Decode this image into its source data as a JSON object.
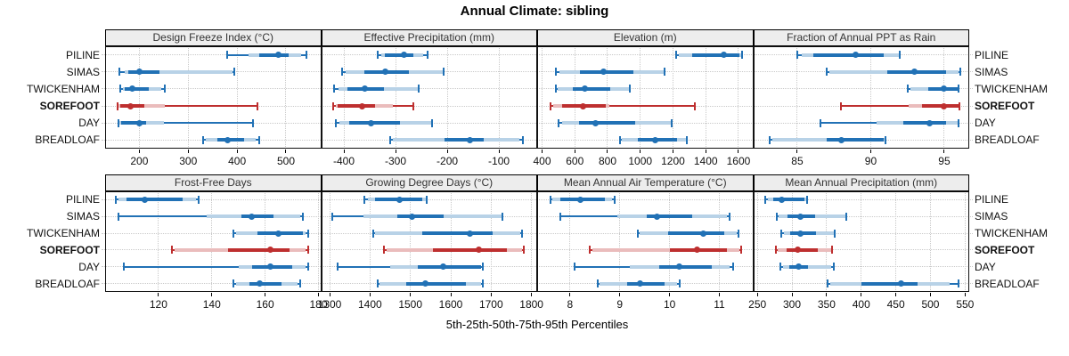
{
  "title": "Annual Climate: sibling",
  "x_axis_caption": "5th-25th-50th-75th-95th Percentiles",
  "sites": [
    "PILINE",
    "SIMAS",
    "TWICKENHAM",
    "SOREFOOT",
    "DAY",
    "BREADLOAF"
  ],
  "highlight_site": "SOREFOOT",
  "colors": {
    "blue": "#2171b5",
    "blue_band": "#b8d2e7",
    "red": "#be2f2f",
    "red_band": "#eabcbc",
    "grid": "#c9c9c9",
    "header_bg": "#ededed",
    "panel_border": "#111111",
    "text": "#111111"
  },
  "chart_data": {
    "type": "scatter",
    "subtype": "trellis-percentile-interval-plot",
    "glyph_note": "per site: thin whisker p5-p95 with end caps, light band p10-p90, dark band p25-p75, dot at median p50",
    "legend_position": "none",
    "grid": "dotted",
    "site_order": [
      "PILINE",
      "SIMAS",
      "TWICKENHAM",
      "SOREFOOT",
      "DAY",
      "BREADLOAF"
    ],
    "panels": [
      {
        "title": "Design Freeze Index (°C)",
        "row": 0,
        "col": 0,
        "xlim": [
          130,
          572
        ],
        "ticks": [
          200,
          300,
          400,
          500
        ],
        "percentiles": [
          [
            380,
            424,
            446,
            485,
            505,
            531,
            542
          ],
          [
            159,
            170,
            178,
            201,
            242,
            390,
            394
          ],
          [
            161,
            166,
            171,
            186,
            219,
            245,
            252
          ],
          [
            155,
            158,
            161,
            182,
            211,
            253,
            441
          ],
          [
            157,
            160,
            163,
            200,
            213,
            251,
            432
          ],
          [
            330,
            336,
            360,
            380,
            415,
            438,
            446
          ]
        ]
      },
      {
        "title": "Effective Precipitation (mm)",
        "row": 0,
        "col": 1,
        "xlim": [
          -444,
          -26
        ],
        "ticks": [
          -400,
          -300,
          -200,
          -100
        ],
        "percentiles": [
          [
            -335,
            -327,
            -320,
            -284,
            -266,
            -246,
            -238
          ],
          [
            -404,
            -397,
            -360,
            -320,
            -274,
            -209,
            -207
          ],
          [
            -419,
            -411,
            -393,
            -360,
            -323,
            -257,
            -255
          ],
          [
            -421,
            -416,
            -412,
            -364,
            -340,
            -306,
            -266
          ],
          [
            -415,
            -409,
            -389,
            -347,
            -291,
            -230,
            -229
          ],
          [
            -310,
            -305,
            -206,
            -157,
            -129,
            -60,
            -54
          ]
        ]
      },
      {
        "title": "Elevation (m)",
        "row": 0,
        "col": 2,
        "xlim": [
          370,
          1690
        ],
        "ticks": [
          400,
          600,
          800,
          1000,
          1200,
          1400,
          1600
        ],
        "percentiles": [
          [
            1220,
            1238,
            1315,
            1510,
            1605,
            1615,
            1624
          ],
          [
            487,
            505,
            633,
            773,
            960,
            1145,
            1151
          ],
          [
            482,
            496,
            587,
            660,
            815,
            929,
            936
          ],
          [
            451,
            470,
            524,
            651,
            787,
            810,
            1333
          ],
          [
            500,
            524,
            624,
            729,
            969,
            1184,
            1191
          ],
          [
            875,
            887,
            987,
            1093,
            1224,
            1282,
            1287
          ]
        ]
      },
      {
        "title": "Fraction of Annual PPT as Rain",
        "row": 0,
        "col": 3,
        "xlim": [
          82,
          96.7
        ],
        "ticks": [
          85,
          90,
          95
        ],
        "percentiles": [
          [
            85,
            85.3,
            86.1,
            89,
            90.9,
            91.9,
            92
          ],
          [
            87,
            87.2,
            91.1,
            93,
            95.1,
            96,
            96.1
          ],
          [
            92.5,
            92.7,
            93.9,
            95,
            95.9,
            95.95,
            96
          ],
          [
            88,
            92.6,
            93.5,
            95,
            96,
            96.02,
            96.05
          ],
          [
            86.6,
            90.4,
            92.2,
            94,
            95.1,
            95.9,
            96
          ],
          [
            83.1,
            83.3,
            87,
            88,
            90.9,
            90.95,
            91
          ]
        ]
      },
      {
        "title": "Frost-Free Days",
        "row": 1,
        "col": 0,
        "xlim": [
          100,
          181
        ],
        "ticks": [
          120,
          140,
          160,
          180
        ],
        "percentiles": [
          [
            104,
            105,
            108,
            115,
            129,
            134,
            135
          ],
          [
            105,
            138,
            151,
            155,
            163,
            173,
            174
          ],
          [
            148,
            149,
            157,
            165,
            174,
            175,
            176
          ],
          [
            125,
            126,
            146,
            162,
            169,
            175,
            176
          ],
          [
            107,
            150,
            155,
            162,
            170,
            175,
            176
          ],
          [
            148,
            149,
            154,
            158,
            166,
            172,
            173
          ]
        ]
      },
      {
        "title": "Growing Degree Days (°C)",
        "row": 1,
        "col": 1,
        "xlim": [
          1279,
          1814
        ],
        "ticks": [
          1300,
          1400,
          1500,
          1600,
          1700,
          1800
        ],
        "percentiles": [
          [
            1386,
            1395,
            1412,
            1473,
            1530,
            1538,
            1541
          ],
          [
            1307,
            1383,
            1467,
            1503,
            1582,
            1725,
            1729
          ],
          [
            1407,
            1412,
            1530,
            1648,
            1703,
            1773,
            1776
          ],
          [
            1434,
            1442,
            1556,
            1670,
            1740,
            1777,
            1782
          ],
          [
            1320,
            1449,
            1519,
            1582,
            1674,
            1676,
            1679
          ],
          [
            1418,
            1423,
            1490,
            1537,
            1637,
            1674,
            1679
          ]
        ]
      },
      {
        "title": "Mean Annual Air Temperature (°C)",
        "row": 1,
        "col": 2,
        "xlim": [
          7.34,
          11.68
        ],
        "ticks": [
          8,
          9,
          10,
          11
        ],
        "percentiles": [
          [
            7.6,
            7.65,
            7.8,
            8.2,
            8.7,
            8.85,
            8.9
          ],
          [
            7.8,
            8.95,
            9.55,
            9.75,
            10.45,
            11.15,
            11.2
          ],
          [
            9.36,
            9.4,
            9.97,
            10.67,
            11.1,
            11.35,
            11.38
          ],
          [
            8.4,
            8.45,
            10.0,
            10.55,
            11.15,
            11.4,
            11.43
          ],
          [
            8.1,
            9.2,
            9.8,
            10.2,
            10.85,
            11.2,
            11.27
          ],
          [
            8.55,
            8.6,
            9.15,
            9.4,
            9.9,
            10.15,
            10.2
          ]
        ]
      },
      {
        "title": "Mean Annual Precipitation (mm)",
        "row": 1,
        "col": 3,
        "xlim": [
          244,
          556
        ],
        "ticks": [
          250,
          300,
          350,
          400,
          450,
          500,
          550
        ],
        "percentiles": [
          [
            262,
            265,
            273,
            285,
            318,
            320,
            322
          ],
          [
            278,
            281,
            294,
            312,
            333,
            377,
            379
          ],
          [
            285,
            288,
            298,
            312,
            335,
            360,
            362
          ],
          [
            277,
            280,
            292,
            308,
            337,
            356,
            358
          ],
          [
            283,
            287,
            296,
            310,
            323,
            357,
            360
          ],
          [
            352,
            355,
            400,
            458,
            482,
            528,
            540
          ]
        ]
      }
    ]
  }
}
